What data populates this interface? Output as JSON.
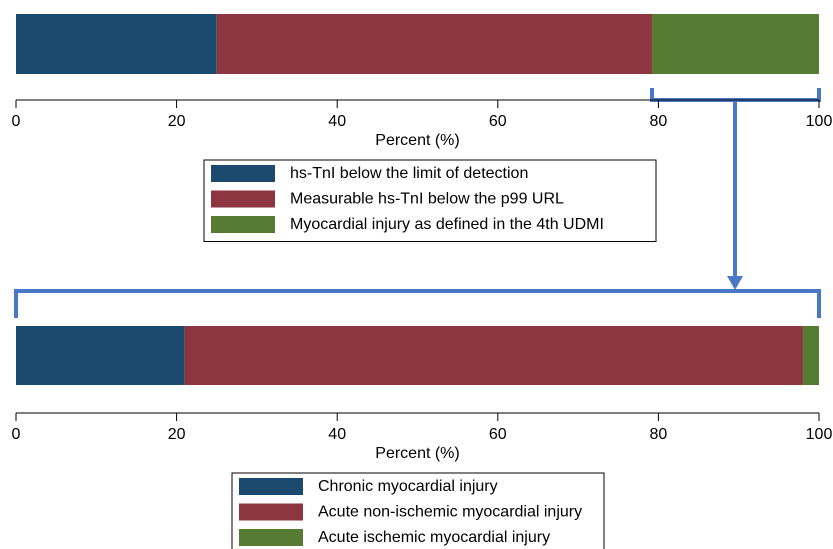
{
  "chart_data": [
    {
      "type": "bar",
      "orientation": "horizontal",
      "stacked": true,
      "categories": [
        null
      ],
      "series": [
        {
          "name": "hs-TnI below the limit of detection",
          "color": "#1c4a6e",
          "values": [
            25
          ]
        },
        {
          "name": "Measurable hs-TnI below the p99 URL",
          "color": "#8d3540",
          "values": [
            54.2
          ]
        },
        {
          "name": "Myocardial injury as defined in the 4th UDMI",
          "color": "#567c33",
          "values": [
            20.8
          ]
        }
      ],
      "xlabel": "Percent (%)",
      "xlim": [
        0,
        100
      ],
      "xticks": [
        0,
        20,
        40,
        60,
        80,
        100
      ],
      "grid": false
    },
    {
      "type": "bar",
      "orientation": "horizontal",
      "stacked": true,
      "categories": [
        null
      ],
      "series": [
        {
          "name": "Chronic myocardial injury",
          "color": "#1c4a6e",
          "values": [
            21
          ]
        },
        {
          "name": "Acute non-ischemic myocardial injury",
          "color": "#8d3540",
          "values": [
            77
          ]
        },
        {
          "name": "Acute ischemic myocardial injury",
          "color": "#567c33",
          "values": [
            2
          ]
        }
      ],
      "xlabel": "Percent (%)",
      "xlim": [
        0,
        100
      ],
      "xticks": [
        0,
        20,
        40,
        60,
        80,
        100
      ],
      "grid": false
    }
  ]
}
